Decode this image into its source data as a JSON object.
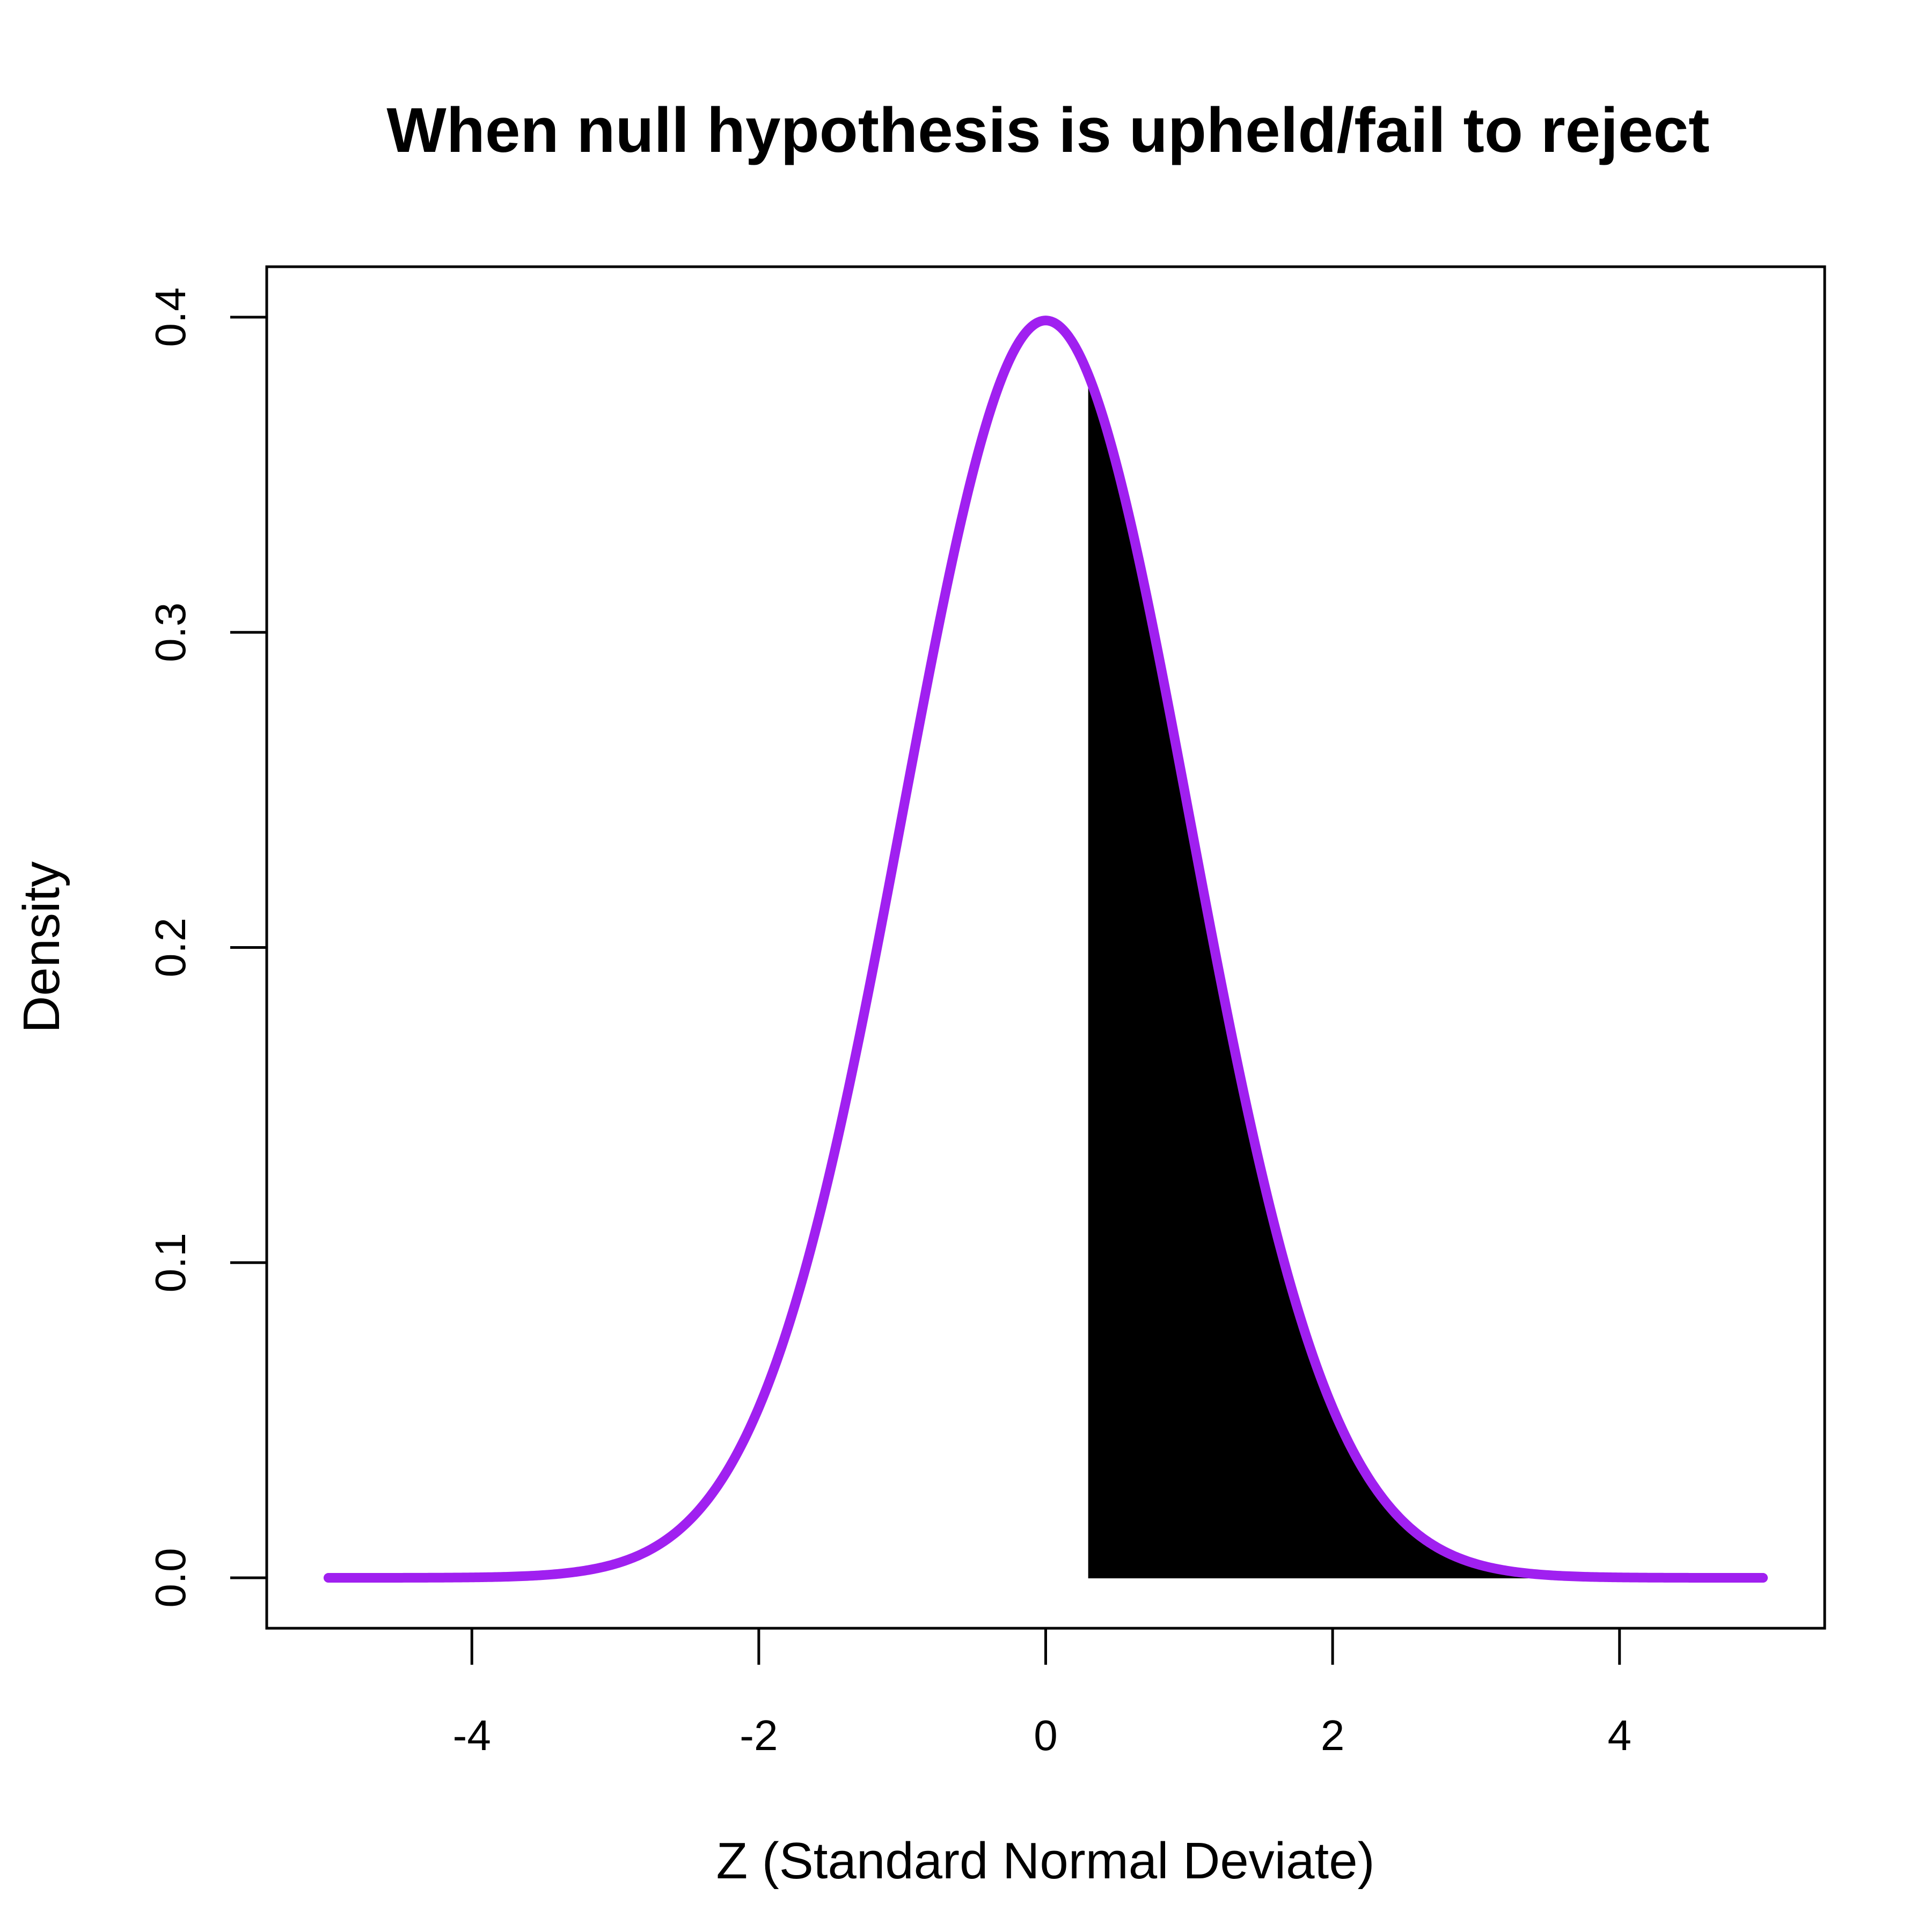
{
  "chart_data": {
    "type": "area",
    "title": "When null hypothesis is upheld/fail to reject",
    "xlabel": "Z (Standard Normal Deviate)",
    "ylabel": "Density",
    "xlim": [
      -5.43,
      5.43
    ],
    "ylim": [
      -0.016,
      0.416
    ],
    "x_ticks": [
      -4,
      -2,
      0,
      2,
      4
    ],
    "x_tick_labels": [
      "-4",
      "-2",
      "0",
      "2",
      "4"
    ],
    "y_ticks": [
      0.0,
      0.1,
      0.2,
      0.3,
      0.4
    ],
    "y_tick_labels": [
      "0.0",
      "0.1",
      "0.2",
      "0.3",
      "0.4"
    ],
    "grid": false,
    "series": [
      {
        "kind": "line",
        "x_range": [
          -5,
          5
        ],
        "x": [
          -5,
          -4.5,
          -4,
          -3.5,
          -3,
          -2.5,
          -2,
          -1.5,
          -1,
          -0.5,
          0,
          0.5,
          1,
          1.5,
          2,
          2.5,
          3,
          3.5,
          4,
          4.5,
          5
        ],
        "y": [
          1.5e-06,
          1.6e-05,
          0.000134,
          0.000873,
          0.00443,
          0.01753,
          0.05399,
          0.12952,
          0.24197,
          0.35207,
          0.39894,
          0.35207,
          0.24197,
          0.12952,
          0.05399,
          0.01753,
          0.00443,
          0.000873,
          0.000134,
          1.6e-05,
          1.5e-06
        ],
        "color": "#A020F0"
      },
      {
        "kind": "shaded-area",
        "x_range": [
          0.3,
          5
        ],
        "x": [
          0.3,
          0.5,
          1,
          1.5,
          2,
          2.5,
          3,
          3.5,
          4,
          4.5,
          5
        ],
        "y": [
          0.38139,
          0.35207,
          0.24197,
          0.12952,
          0.05399,
          0.01753,
          0.00443,
          0.000873,
          0.000134,
          1.6e-05,
          1.5e-06
        ],
        "color": "#000000"
      }
    ]
  }
}
